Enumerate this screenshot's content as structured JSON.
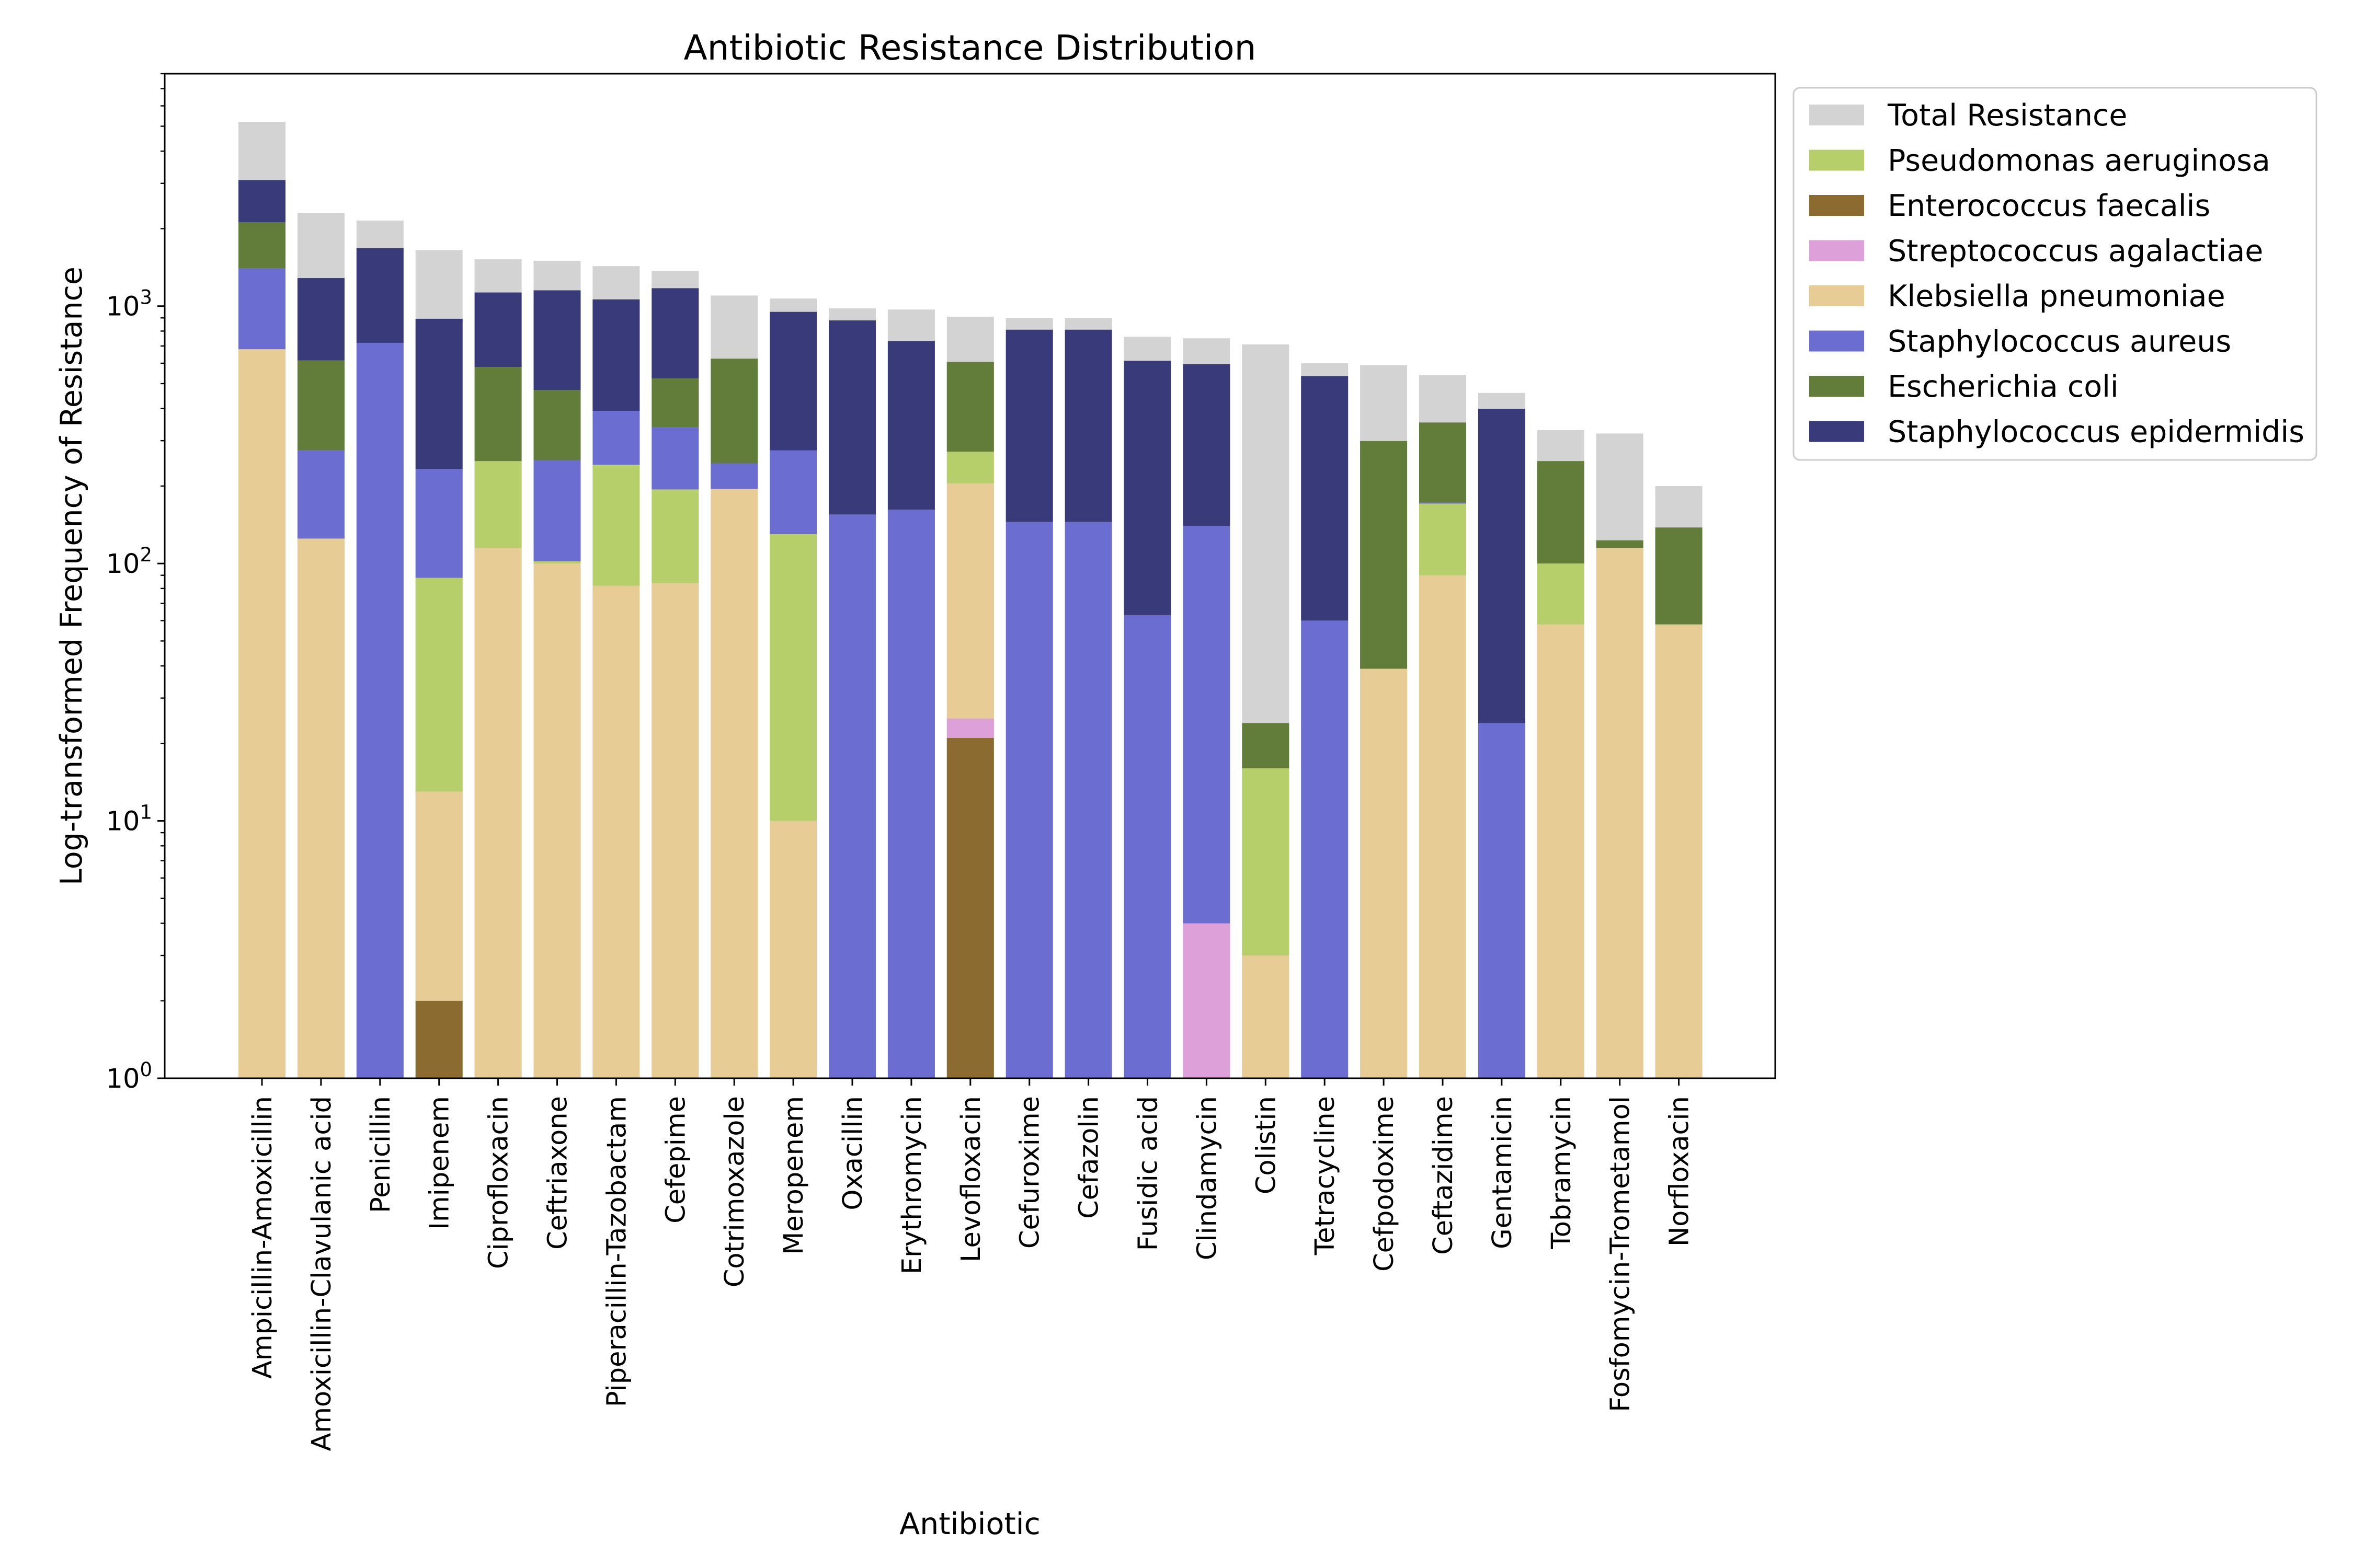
{
  "chart_data": {
    "type": "bar",
    "stacked": true,
    "title": "Antibiotic Resistance Distribution",
    "xlabel": "Antibiotic",
    "ylabel": "Log-transformed Frequency of Resistance",
    "yscale": "log",
    "ylim": [
      1,
      8000
    ],
    "yticks": [
      {
        "value": 1,
        "base": "10",
        "exp": "0"
      },
      {
        "value": 10,
        "base": "10",
        "exp": "1"
      },
      {
        "value": 100,
        "base": "10",
        "exp": "2"
      },
      {
        "value": 1000,
        "base": "10",
        "exp": "3"
      }
    ],
    "grid": false,
    "legend_position": "outside-right-top",
    "categories": [
      "Ampicillin-Amoxicillin",
      "Amoxicillin-Clavulanic acid",
      "Penicillin",
      "Imipenem",
      "Ciprofloxacin",
      "Ceftriaxone",
      "Piperacillin-Tazobactam",
      "Cefepime",
      "Cotrimoxazole",
      "Meropenem",
      "Oxacillin",
      "Erythromycin",
      "Levofloxacin",
      "Cefuroxime",
      "Cefazolin",
      "Fusidic acid",
      "Clindamycin",
      "Colistin",
      "Tetracycline",
      "Cefpodoxime",
      "Ceftazidime",
      "Gentamicin",
      "Tobramycin",
      "Fosfomycin-Trometamol",
      "Norfloxacin"
    ],
    "total": {
      "name": "Total Resistance",
      "color": "#d3d3d3",
      "values": [
        5200,
        2300,
        2150,
        1650,
        1520,
        1500,
        1430,
        1370,
        1100,
        1070,
        980,
        970,
        910,
        900,
        900,
        760,
        750,
        710,
        600,
        590,
        540,
        460,
        330,
        320,
        200
      ]
    },
    "series": [
      {
        "name": "Enterococcus faecalis",
        "color": "#8b6b30",
        "values": [
          0,
          0,
          0,
          2,
          0,
          0,
          0,
          0,
          0,
          0,
          0,
          0,
          21,
          0,
          0,
          0,
          0,
          0,
          0,
          0,
          0,
          0,
          0,
          0,
          0
        ]
      },
      {
        "name": "Streptococcus agalactiae",
        "color": "#dda0d8",
        "values": [
          0,
          0,
          0,
          0,
          0,
          0,
          0,
          0,
          0,
          0,
          0,
          0,
          4,
          0,
          0,
          0,
          4,
          0,
          0,
          0,
          0,
          0,
          0,
          0,
          0
        ]
      },
      {
        "name": "Klebsiella pneumoniae",
        "color": "#e8cc96",
        "values": [
          680,
          125,
          0,
          11,
          115,
          100,
          82,
          84,
          195,
          10,
          0,
          0,
          180,
          0,
          0,
          0,
          0,
          3,
          0,
          39,
          90,
          0,
          58,
          115,
          58
        ]
      },
      {
        "name": "Pseudomonas aeruginosa",
        "color": "#b6cf6a",
        "values": [
          0,
          0,
          0,
          75,
          135,
          2,
          160,
          110,
          0,
          120,
          0,
          0,
          67,
          0,
          0,
          0,
          0,
          13,
          0,
          0,
          81,
          0,
          42,
          0,
          0
        ]
      },
      {
        "name": "Staphylococcus aureus",
        "color": "#6b6ed0",
        "values": [
          720,
          150,
          720,
          145,
          0,
          150,
          150,
          145,
          50,
          145,
          155,
          162,
          0,
          145,
          145,
          63,
          136,
          0,
          60,
          0,
          2,
          24,
          0,
          0,
          0
        ]
      },
      {
        "name": "Escherichia coli",
        "color": "#627c3a",
        "values": [
          720,
          340,
          0,
          0,
          330,
          220,
          0,
          185,
          380,
          0,
          0,
          0,
          335,
          0,
          0,
          0,
          0,
          8,
          0,
          260,
          180,
          0,
          150,
          8,
          80
        ]
      },
      {
        "name": "Staphylococcus epidermidis",
        "color": "#393a79",
        "values": [
          970,
          670,
          960,
          660,
          550,
          680,
          670,
          650,
          0,
          675,
          725,
          570,
          0,
          665,
          665,
          550,
          455,
          0,
          475,
          0,
          0,
          375,
          0,
          0,
          0
        ]
      }
    ],
    "legend": [
      {
        "name": "Total Resistance",
        "color": "#d3d3d3"
      },
      {
        "name": "Pseudomonas aeruginosa",
        "color": "#b6cf6a"
      },
      {
        "name": "Enterococcus faecalis",
        "color": "#8b6b30"
      },
      {
        "name": "Streptococcus agalactiae",
        "color": "#dda0d8"
      },
      {
        "name": "Klebsiella pneumoniae",
        "color": "#e8cc96"
      },
      {
        "name": "Staphylococcus aureus",
        "color": "#6b6ed0"
      },
      {
        "name": "Escherichia coli",
        "color": "#627c3a"
      },
      {
        "name": "Staphylococcus epidermidis",
        "color": "#393a79"
      }
    ]
  }
}
